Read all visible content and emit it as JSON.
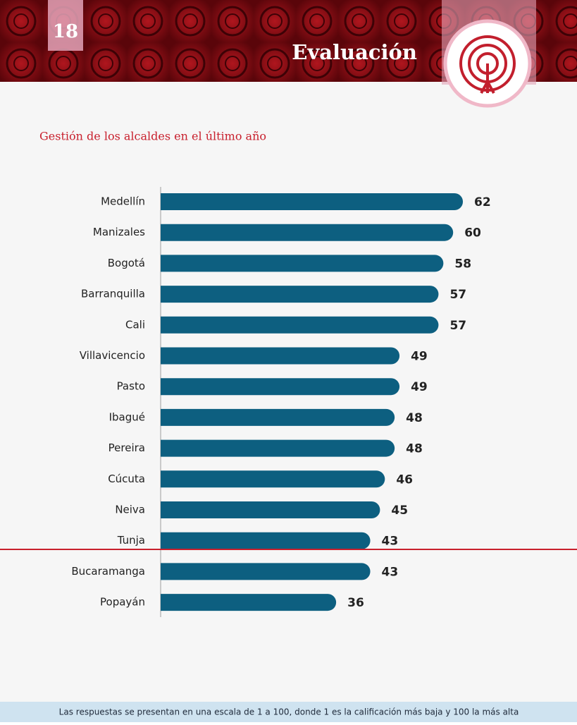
{
  "page_number": "18",
  "section": "Evaluación",
  "chart_data": {
    "type": "bar",
    "orientation": "horizontal",
    "title": "Gestión de los alcaldes en el último año",
    "categories": [
      "Medellín",
      "Manizales",
      "Bogotá",
      "Barranquilla",
      "Cali",
      "Villavicencio",
      "Pasto",
      "Ibagué",
      "Pereira",
      "Cúcuta",
      "Neiva",
      "Tunja",
      "Bucaramanga",
      "Popayán"
    ],
    "values": [
      62,
      60,
      58,
      57,
      57,
      49,
      49,
      48,
      48,
      46,
      45,
      43,
      43,
      36
    ],
    "color": "#0d5f80"
  },
  "footnote": "Las respuestas se presentan en una escala de 1 a 100, donde 1 es la calificación más baja y 100 la más alta"
}
